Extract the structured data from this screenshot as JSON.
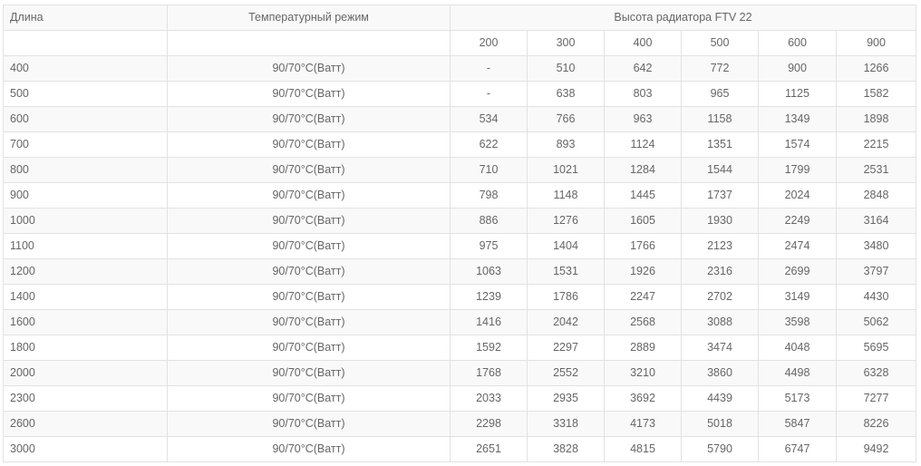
{
  "table": {
    "header": {
      "length": "Длина",
      "temp_mode": "Температурный режим",
      "height_group": "Высота радиатора FTV 22"
    },
    "heights": [
      "200",
      "300",
      "400",
      "500",
      "600",
      "900"
    ],
    "rows": [
      {
        "length": "400",
        "mode": "90/70°C(Ватт)",
        "values": [
          "-",
          "510",
          "642",
          "772",
          "900",
          "1266"
        ]
      },
      {
        "length": "500",
        "mode": "90/70°C(Ватт)",
        "values": [
          "-",
          "638",
          "803",
          "965",
          "1125",
          "1582"
        ]
      },
      {
        "length": "600",
        "mode": "90/70°C(Ватт)",
        "values": [
          "534",
          "766",
          "963",
          "1158",
          "1349",
          "1898"
        ]
      },
      {
        "length": "700",
        "mode": "90/70°C(Ватт)",
        "values": [
          "622",
          "893",
          "1124",
          "1351",
          "1574",
          "2215"
        ]
      },
      {
        "length": "800",
        "mode": "90/70°C(Ватт)",
        "values": [
          "710",
          "1021",
          "1284",
          "1544",
          "1799",
          "2531"
        ]
      },
      {
        "length": "900",
        "mode": "90/70°C(Ватт)",
        "values": [
          "798",
          "1148",
          "1445",
          "1737",
          "2024",
          "2848"
        ]
      },
      {
        "length": "1000",
        "mode": "90/70°C(Ватт)",
        "values": [
          "886",
          "1276",
          "1605",
          "1930",
          "2249",
          "3164"
        ]
      },
      {
        "length": "1100",
        "mode": "90/70°C(Ватт)",
        "values": [
          "975",
          "1404",
          "1766",
          "2123",
          "2474",
          "3480"
        ]
      },
      {
        "length": "1200",
        "mode": "90/70°C(Ватт)",
        "values": [
          "1063",
          "1531",
          "1926",
          "2316",
          "2699",
          "3797"
        ]
      },
      {
        "length": "1400",
        "mode": "90/70°C(Ватт)",
        "values": [
          "1239",
          "1786",
          "2247",
          "2702",
          "3149",
          "4430"
        ]
      },
      {
        "length": "1600",
        "mode": "90/70°C(Ватт)",
        "values": [
          "1416",
          "2042",
          "2568",
          "3088",
          "3598",
          "5062"
        ]
      },
      {
        "length": "1800",
        "mode": "90/70°C(Ватт)",
        "values": [
          "1592",
          "2297",
          "2889",
          "3474",
          "4048",
          "5695"
        ]
      },
      {
        "length": "2000",
        "mode": "90/70°C(Ватт)",
        "values": [
          "1768",
          "2552",
          "3210",
          "3860",
          "4498",
          "6328"
        ]
      },
      {
        "length": "2300",
        "mode": "90/70°C(Ватт)",
        "values": [
          "2033",
          "2935",
          "3692",
          "4439",
          "5173",
          "7277"
        ]
      },
      {
        "length": "2600",
        "mode": "90/70°C(Ватт)",
        "values": [
          "2298",
          "3318",
          "4173",
          "5018",
          "5847",
          "8226"
        ]
      },
      {
        "length": "3000",
        "mode": "90/70°C(Ватт)",
        "values": [
          "2651",
          "3828",
          "4815",
          "5790",
          "6747",
          "9492"
        ]
      }
    ]
  }
}
